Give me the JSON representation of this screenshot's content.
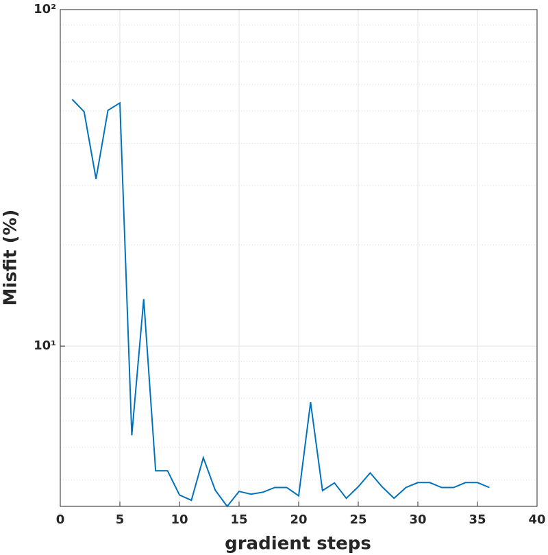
{
  "chart_data": {
    "type": "line",
    "xlabel": "gradient steps",
    "ylabel": "Misfit (%)",
    "x": [
      1,
      2,
      3,
      4,
      5,
      6,
      7,
      8,
      9,
      10,
      11,
      12,
      13,
      14,
      15,
      16,
      17,
      18,
      19,
      20,
      21,
      22,
      23,
      24,
      25,
      26,
      27,
      28,
      29,
      30,
      31,
      32,
      33,
      34,
      35,
      36
    ],
    "series": [
      {
        "color": "#0072bd",
        "values": [
          54.1,
          49.7,
          31.4,
          50.2,
          52.8,
          5.43,
          13.8,
          4.26,
          4.26,
          3.61,
          3.48,
          4.66,
          3.73,
          3.34,
          3.7,
          3.63,
          3.68,
          3.8,
          3.8,
          3.59,
          6.81,
          3.72,
          3.92,
          3.53,
          3.82,
          4.2,
          3.82,
          3.53,
          3.8,
          3.93,
          3.93,
          3.8,
          3.8,
          3.93,
          3.93,
          3.8
        ]
      }
    ],
    "xlim": [
      0,
      40
    ],
    "xticks": [
      0,
      5,
      10,
      15,
      20,
      25,
      30,
      35,
      40
    ],
    "ylim": [
      3.34,
      100
    ],
    "ylog": true,
    "yticks": [
      {
        "value": 10,
        "label": "10¹"
      },
      {
        "value": 100,
        "label": "10²"
      }
    ],
    "yminorticks": [
      4,
      5,
      6,
      7,
      8,
      9,
      20,
      30,
      40,
      50,
      60,
      70,
      80,
      90
    ],
    "grid": true
  }
}
